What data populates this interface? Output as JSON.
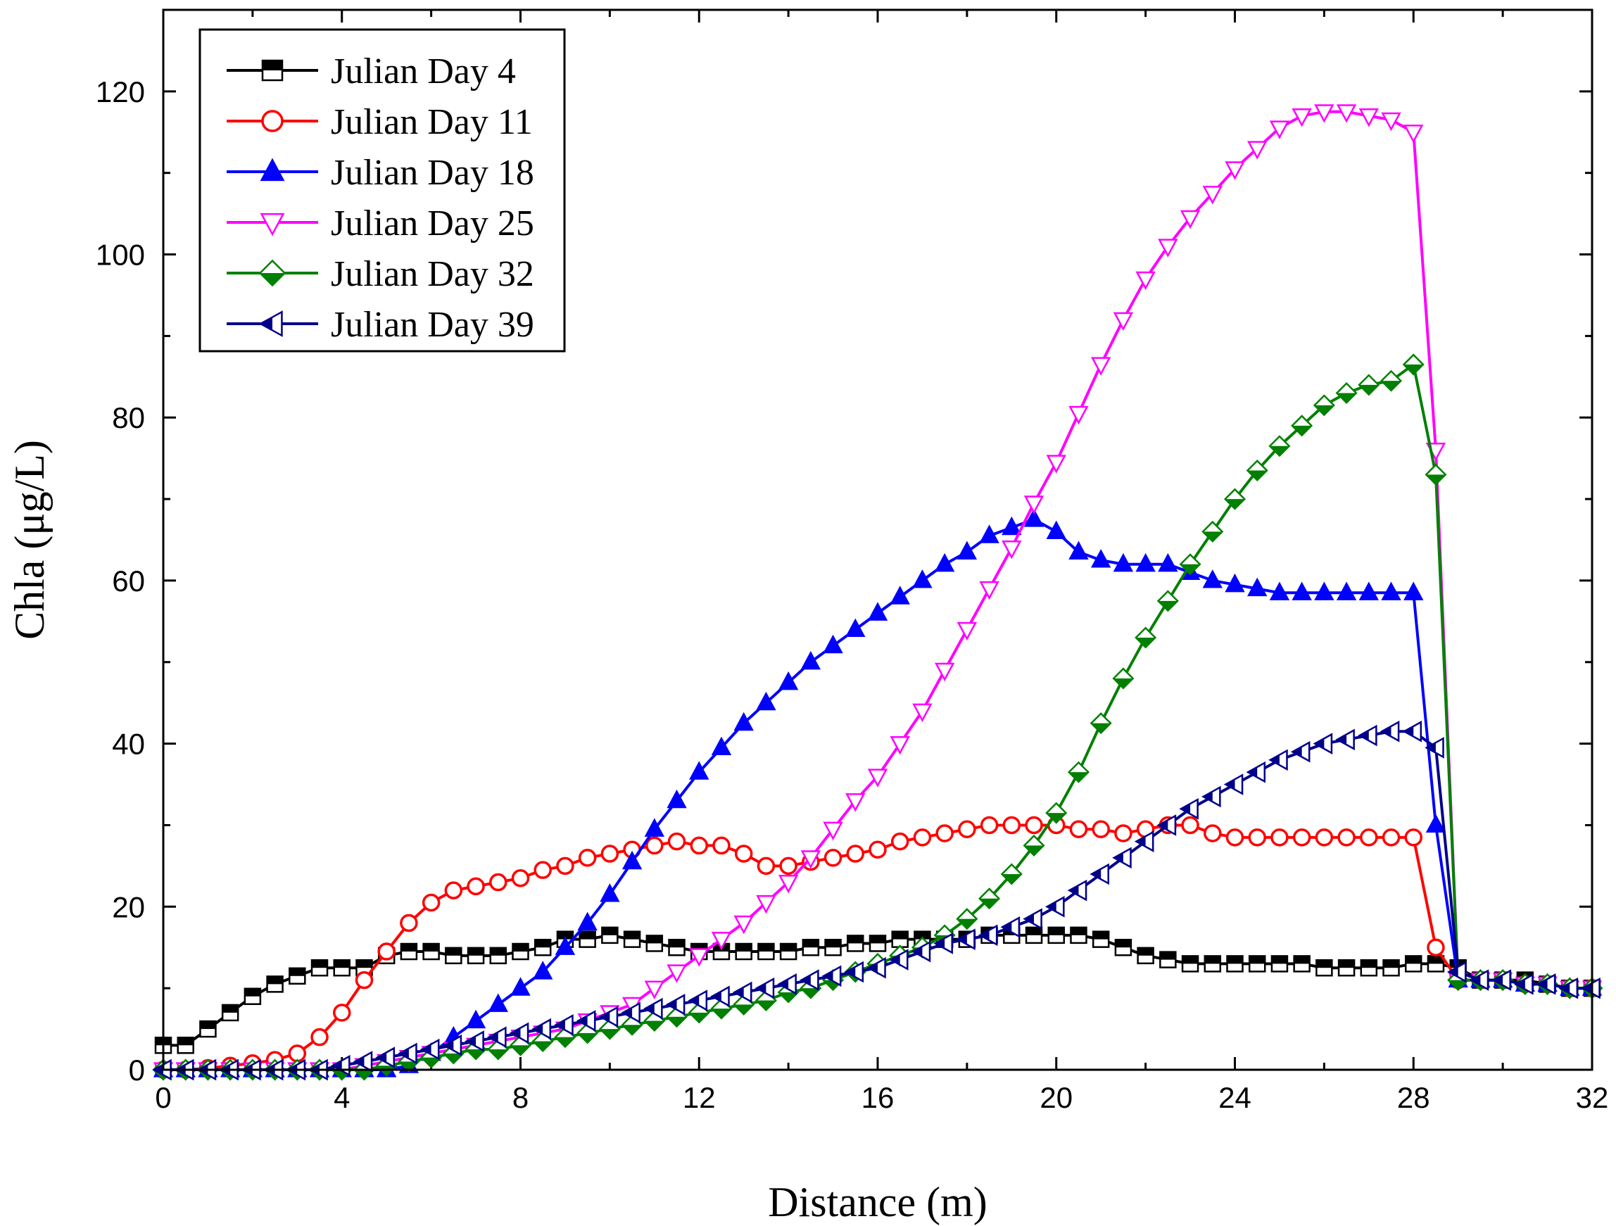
{
  "chart_data": {
    "type": "line",
    "title": "",
    "xlabel": "Distance (m)",
    "ylabel": "Chla  (μg/L)",
    "xlim": [
      0,
      32
    ],
    "ylim": [
      0,
      130
    ],
    "xticks": [
      0,
      4,
      8,
      12,
      16,
      20,
      24,
      28,
      32
    ],
    "yticks": [
      0,
      20,
      40,
      60,
      80,
      100,
      120
    ],
    "grid": false,
    "legend_position": "top-left",
    "series": [
      {
        "name": "Julian Day 4",
        "color": "#000000",
        "marker": "square-half",
        "x": [
          0,
          0.5,
          1,
          1.5,
          2,
          2.5,
          3,
          3.5,
          4,
          4.5,
          5,
          5.5,
          6,
          6.5,
          7,
          7.5,
          8,
          8.5,
          9,
          9.5,
          10,
          10.5,
          11,
          11.5,
          12,
          12.5,
          13,
          13.5,
          14,
          14.5,
          15,
          15.5,
          16,
          16.5,
          17,
          17.5,
          18,
          18.5,
          19,
          19.5,
          20,
          20.5,
          21,
          21.5,
          22,
          22.5,
          23,
          23.5,
          24,
          24.5,
          25,
          25.5,
          26,
          26.5,
          27,
          27.5,
          28,
          28.5,
          29,
          29.5,
          30,
          30.5,
          31,
          31.5,
          32
        ],
        "y": [
          3,
          3,
          5,
          7,
          9,
          10.5,
          11.5,
          12.5,
          12.5,
          12.5,
          14,
          14.5,
          14.5,
          14,
          14,
          14,
          14.5,
          15,
          16,
          16,
          16.5,
          16,
          15.5,
          15,
          14.5,
          14.5,
          14.5,
          14.5,
          14.5,
          15,
          15,
          15.5,
          15.5,
          16,
          16,
          16,
          16,
          16.5,
          16.5,
          16.5,
          16.5,
          16.5,
          16,
          15,
          14,
          13.5,
          13,
          13,
          13,
          13,
          13,
          13,
          12.5,
          12.5,
          12.5,
          12.5,
          13,
          13,
          12.5,
          11,
          11,
          11,
          10.5,
          10,
          10
        ]
      },
      {
        "name": "Julian Day 11",
        "color": "#ff0000",
        "marker": "circle-open",
        "x": [
          0,
          0.5,
          1,
          1.5,
          2,
          2.5,
          3,
          3.5,
          4,
          4.5,
          5,
          5.5,
          6,
          6.5,
          7,
          7.5,
          8,
          8.5,
          9,
          9.5,
          10,
          10.5,
          11,
          11.5,
          12,
          12.5,
          13,
          13.5,
          14,
          14.5,
          15,
          15.5,
          16,
          16.5,
          17,
          17.5,
          18,
          18.5,
          19,
          19.5,
          20,
          20.5,
          21,
          21.5,
          22,
          22.5,
          23,
          23.5,
          24,
          24.5,
          25,
          25.5,
          26,
          26.5,
          27,
          27.5,
          28,
          28.5,
          29,
          29.5,
          30,
          30.5,
          31,
          31.5,
          32
        ],
        "y": [
          0,
          0,
          0.2,
          0.5,
          0.8,
          1.2,
          2,
          4,
          7,
          11,
          14.5,
          18,
          20.5,
          22,
          22.5,
          23,
          23.5,
          24.5,
          25,
          26,
          26.5,
          27,
          27.5,
          28,
          27.5,
          27.5,
          26.5,
          25,
          25,
          25.5,
          26,
          26.5,
          27,
          28,
          28.5,
          29,
          29.5,
          30,
          30,
          30,
          30,
          29.5,
          29.5,
          29,
          29.5,
          30,
          30,
          29,
          28.5,
          28.5,
          28.5,
          28.5,
          28.5,
          28.5,
          28.5,
          28.5,
          28.5,
          15,
          11,
          11,
          11,
          10.5,
          10.5,
          10,
          10
        ]
      },
      {
        "name": "Julian Day 18",
        "color": "#0000ff",
        "marker": "triangle-up-filled",
        "x": [
          0,
          0.5,
          1,
          1.5,
          2,
          2.5,
          3,
          3.5,
          4,
          4.5,
          5,
          5.5,
          6,
          6.5,
          7,
          7.5,
          8,
          8.5,
          9,
          9.5,
          10,
          10.5,
          11,
          11.5,
          12,
          12.5,
          13,
          13.5,
          14,
          14.5,
          15,
          15.5,
          16,
          16.5,
          17,
          17.5,
          18,
          18.5,
          19,
          19.5,
          20,
          20.5,
          21,
          21.5,
          22,
          22.5,
          23,
          23.5,
          24,
          24.5,
          25,
          25.5,
          26,
          26.5,
          27,
          27.5,
          28,
          28.5,
          29,
          29.5,
          30,
          30.5,
          31,
          31.5,
          32
        ],
        "y": [
          0,
          0,
          0,
          0,
          0,
          0,
          0,
          0,
          0,
          0,
          0,
          0.5,
          2,
          4,
          6,
          8,
          10,
          12,
          15,
          18,
          21.5,
          25.5,
          29.5,
          33,
          36.5,
          39.5,
          42.5,
          45,
          47.5,
          50,
          52,
          54,
          56,
          58,
          60,
          62,
          63.5,
          65.5,
          66.5,
          67.5,
          66,
          63.5,
          62.5,
          62,
          62,
          62,
          61,
          60,
          59.5,
          59,
          58.5,
          58.5,
          58.5,
          58.5,
          58.5,
          58.5,
          58.5,
          30,
          11,
          11,
          11,
          10.5,
          10.5,
          10,
          10
        ]
      },
      {
        "name": "Julian Day 25",
        "color": "#ff00ff",
        "marker": "triangle-down-open",
        "x": [
          0,
          0.5,
          1,
          1.5,
          2,
          2.5,
          3,
          3.5,
          4,
          4.5,
          5,
          5.5,
          6,
          6.5,
          7,
          7.5,
          8,
          8.5,
          9,
          9.5,
          10,
          10.5,
          11,
          11.5,
          12,
          12.5,
          13,
          13.5,
          14,
          14.5,
          15,
          15.5,
          16,
          16.5,
          17,
          17.5,
          18,
          18.5,
          19,
          19.5,
          20,
          20.5,
          21,
          21.5,
          22,
          22.5,
          23,
          23.5,
          24,
          24.5,
          25,
          25.5,
          26,
          26.5,
          27,
          27.5,
          28,
          28.5,
          29,
          29.5,
          30,
          30.5,
          31,
          31.5,
          32
        ],
        "y": [
          0,
          0,
          0,
          0,
          0,
          0,
          0,
          0,
          0,
          0.5,
          1,
          1.5,
          2,
          2.5,
          3,
          3.5,
          4,
          4.5,
          5,
          6,
          7,
          8,
          10,
          12,
          14,
          16,
          18,
          20.5,
          23,
          26,
          29.5,
          33,
          36,
          40,
          44,
          49,
          54,
          59,
          64,
          69.5,
          74.5,
          80.5,
          86.5,
          92,
          97,
          101,
          104.5,
          107.5,
          110.5,
          113,
          115.5,
          117,
          117.5,
          117.5,
          117,
          116.5,
          115,
          76,
          11,
          11,
          11,
          10.5,
          10.5,
          10,
          10
        ]
      },
      {
        "name": "Julian Day 32",
        "color": "#008000",
        "marker": "diamond-half",
        "x": [
          0,
          0.5,
          1,
          1.5,
          2,
          2.5,
          3,
          3.5,
          4,
          4.5,
          5,
          5.5,
          6,
          6.5,
          7,
          7.5,
          8,
          8.5,
          9,
          9.5,
          10,
          10.5,
          11,
          11.5,
          12,
          12.5,
          13,
          13.5,
          14,
          14.5,
          15,
          15.5,
          16,
          16.5,
          17,
          17.5,
          18,
          18.5,
          19,
          19.5,
          20,
          20.5,
          21,
          21.5,
          22,
          22.5,
          23,
          23.5,
          24,
          24.5,
          25,
          25.5,
          26,
          26.5,
          27,
          27.5,
          28,
          28.5,
          29,
          29.5,
          30,
          30.5,
          31,
          31.5,
          32
        ],
        "y": [
          0,
          0,
          0,
          0,
          0,
          0,
          0,
          0,
          0,
          0,
          0.5,
          1,
          1.5,
          2,
          2.5,
          2.5,
          3,
          3.5,
          4,
          4.5,
          5,
          5.5,
          6,
          6.5,
          7,
          7.5,
          8,
          8.5,
          9.5,
          10,
          11,
          12,
          13,
          14,
          15,
          16.5,
          18.5,
          21,
          24,
          27.5,
          31.5,
          36.5,
          42.5,
          48,
          53,
          57.5,
          62,
          66,
          70,
          73.5,
          76.5,
          79,
          81.5,
          83,
          84,
          84.5,
          86.5,
          73,
          11,
          11,
          11,
          10.5,
          10.5,
          10,
          10
        ]
      },
      {
        "name": "Julian Day 39",
        "color": "#00008b",
        "marker": "triangle-left-half",
        "x": [
          0,
          0.5,
          1,
          1.5,
          2,
          2.5,
          3,
          3.5,
          4,
          4.5,
          5,
          5.5,
          6,
          6.5,
          7,
          7.5,
          8,
          8.5,
          9,
          9.5,
          10,
          10.5,
          11,
          11.5,
          12,
          12.5,
          13,
          13.5,
          14,
          14.5,
          15,
          15.5,
          16,
          16.5,
          17,
          17.5,
          18,
          18.5,
          19,
          19.5,
          20,
          20.5,
          21,
          21.5,
          22,
          22.5,
          23,
          23.5,
          24,
          24.5,
          25,
          25.5,
          26,
          26.5,
          27,
          27.5,
          28,
          28.5,
          29,
          29.5,
          30,
          30.5,
          31,
          31.5,
          32
        ],
        "y": [
          0,
          0,
          0,
          0,
          0,
          0,
          0,
          0,
          0.5,
          1,
          1.5,
          2,
          2.5,
          3,
          3.5,
          4,
          4.5,
          5,
          5.5,
          6,
          6.5,
          7,
          7.5,
          8,
          8.5,
          9,
          9.5,
          10,
          10.5,
          11,
          11.5,
          12,
          12.5,
          13.5,
          14.5,
          15.5,
          16,
          16.5,
          17.5,
          18.5,
          20,
          22,
          24,
          26,
          28,
          30,
          32,
          33.5,
          35,
          36.5,
          38,
          39,
          40,
          40.5,
          41,
          41.5,
          41.5,
          39.5,
          12,
          11,
          11,
          10.5,
          10.5,
          10,
          10
        ]
      }
    ]
  }
}
